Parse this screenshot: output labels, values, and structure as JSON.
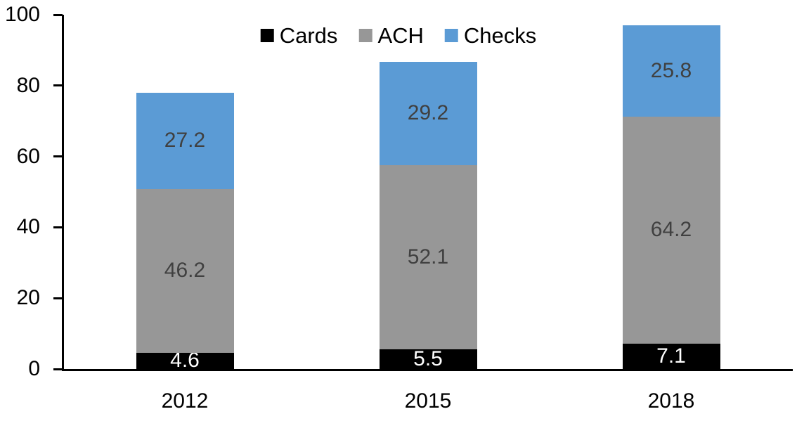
{
  "chart_data": {
    "type": "bar",
    "stacked": true,
    "title": "",
    "xlabel": "",
    "ylabel": "",
    "categories": [
      "2012",
      "2015",
      "2018"
    ],
    "series": [
      {
        "name": "Cards",
        "values": [
          4.6,
          5.5,
          7.1
        ],
        "color": "#000000",
        "label_color": "#ffffff"
      },
      {
        "name": "ACH",
        "values": [
          46.2,
          52.1,
          64.2
        ],
        "color": "#979797",
        "label_color": "#404040"
      },
      {
        "name": "Checks",
        "values": [
          27.2,
          29.2,
          25.8
        ],
        "color": "#5b9bd5",
        "label_color": "#404040"
      }
    ],
    "totals": [
      78.0,
      86.8,
      97.1
    ],
    "ylim": [
      0,
      100
    ],
    "yticks": [
      "0",
      "20",
      "40",
      "60",
      "80",
      "100"
    ],
    "legend_position": "top-center",
    "grid": false,
    "value_label_decimals": 1
  },
  "colors": {
    "axis": "#000000",
    "background": "#ffffff",
    "tick_label": "#000000"
  }
}
